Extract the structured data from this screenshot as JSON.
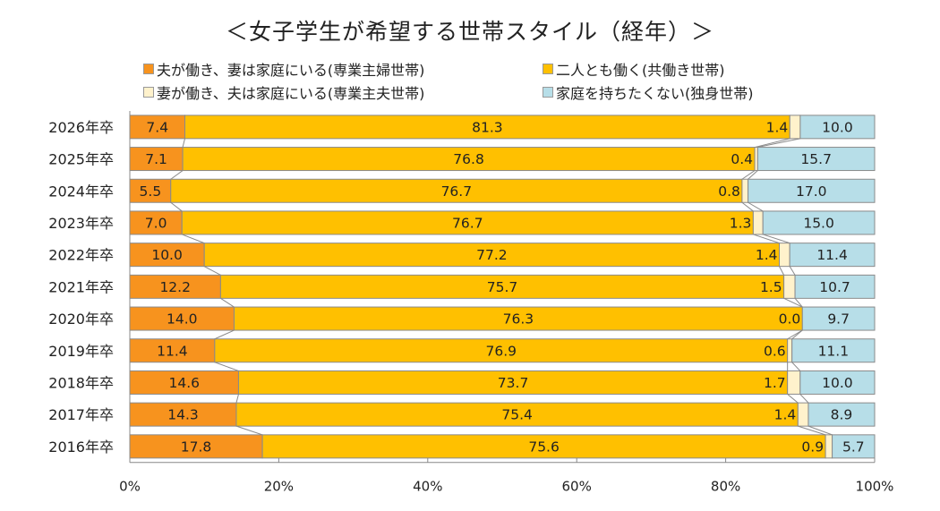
{
  "chart_data": {
    "type": "bar",
    "orientation": "horizontal",
    "stacked": "percent",
    "title": "＜女子学生が希望する世帯スタイル（経年）＞",
    "categories": [
      "2026年卒",
      "2025年卒",
      "2024年卒",
      "2023年卒",
      "2022年卒",
      "2021年卒",
      "2020年卒",
      "2019年卒",
      "2018年卒",
      "2017年卒",
      "2016年卒"
    ],
    "series": [
      {
        "name": "夫が働き、妻は家庭にいる(専業主婦世帯)",
        "color": "#F7931E",
        "values": [
          7.4,
          7.1,
          5.5,
          7.0,
          10.0,
          12.2,
          14.0,
          11.4,
          14.6,
          14.3,
          17.8
        ]
      },
      {
        "name": "二人とも働く(共働き世帯)",
        "color": "#FFC000",
        "values": [
          81.3,
          76.8,
          76.7,
          76.7,
          77.2,
          75.7,
          76.3,
          76.9,
          73.7,
          75.4,
          75.6
        ]
      },
      {
        "name": "妻が働き、夫は家庭にいる(専業主夫世帯)",
        "color": "#FFF2CC",
        "values": [
          1.4,
          0.4,
          0.8,
          1.3,
          1.4,
          1.5,
          0.0,
          0.6,
          1.7,
          1.4,
          0.9
        ]
      },
      {
        "name": "家庭を持ちたくない(独身世帯)",
        "color": "#B7DEE8",
        "values": [
          10.0,
          15.7,
          17.0,
          15.0,
          11.4,
          10.7,
          9.7,
          11.1,
          10.0,
          8.9,
          5.7
        ]
      }
    ],
    "xlim": [
      0,
      100
    ],
    "xticks": [
      "0%",
      "20%",
      "40%",
      "60%",
      "80%",
      "100%"
    ],
    "legend_position": "top",
    "grid": false
  }
}
